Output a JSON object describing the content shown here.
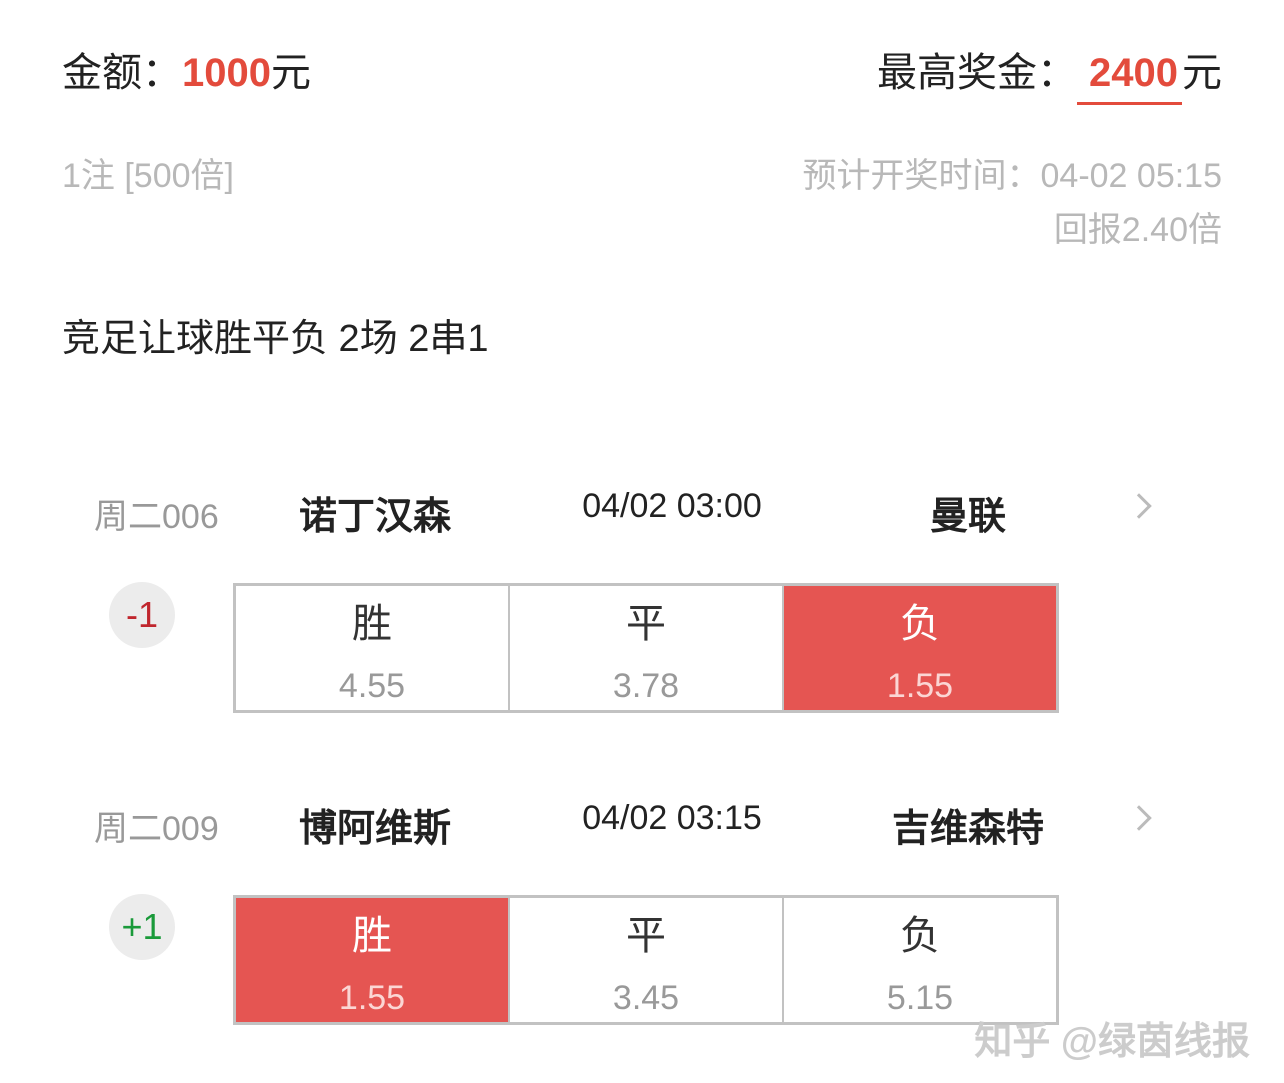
{
  "summary": {
    "amount_label": "金额：",
    "amount_value": "1000",
    "amount_unit": "元",
    "max_label": "最高奖金：",
    "max_value": "2400",
    "max_unit": "元",
    "bets": "1注 [500倍]",
    "draw_time": "预计开奖时间：04-02 05:15",
    "return": "回报2.40倍"
  },
  "play_title": "竞足让球胜平负 2场 2串1",
  "colors": {
    "accent": "#e34b3c",
    "selected": "#e55552",
    "positive": "#1a9a3a",
    "negative": "#c0262d"
  },
  "matches": [
    {
      "code": "周二006",
      "home": "诺丁汉森",
      "time": "04/02 03:00",
      "away": "曼联",
      "handicap": "-1",
      "options": [
        {
          "label": "胜",
          "odds": "4.55",
          "selected": false
        },
        {
          "label": "平",
          "odds": "3.78",
          "selected": false
        },
        {
          "label": "负",
          "odds": "1.55",
          "selected": true
        }
      ]
    },
    {
      "code": "周二009",
      "home": "博阿维斯",
      "time": "04/02 03:15",
      "away": "吉维森特",
      "handicap": "+1",
      "options": [
        {
          "label": "胜",
          "odds": "1.55",
          "selected": true
        },
        {
          "label": "平",
          "odds": "3.45",
          "selected": false
        },
        {
          "label": "负",
          "odds": "5.15",
          "selected": false
        }
      ]
    }
  ],
  "watermark": "知乎 @绿茵线报"
}
